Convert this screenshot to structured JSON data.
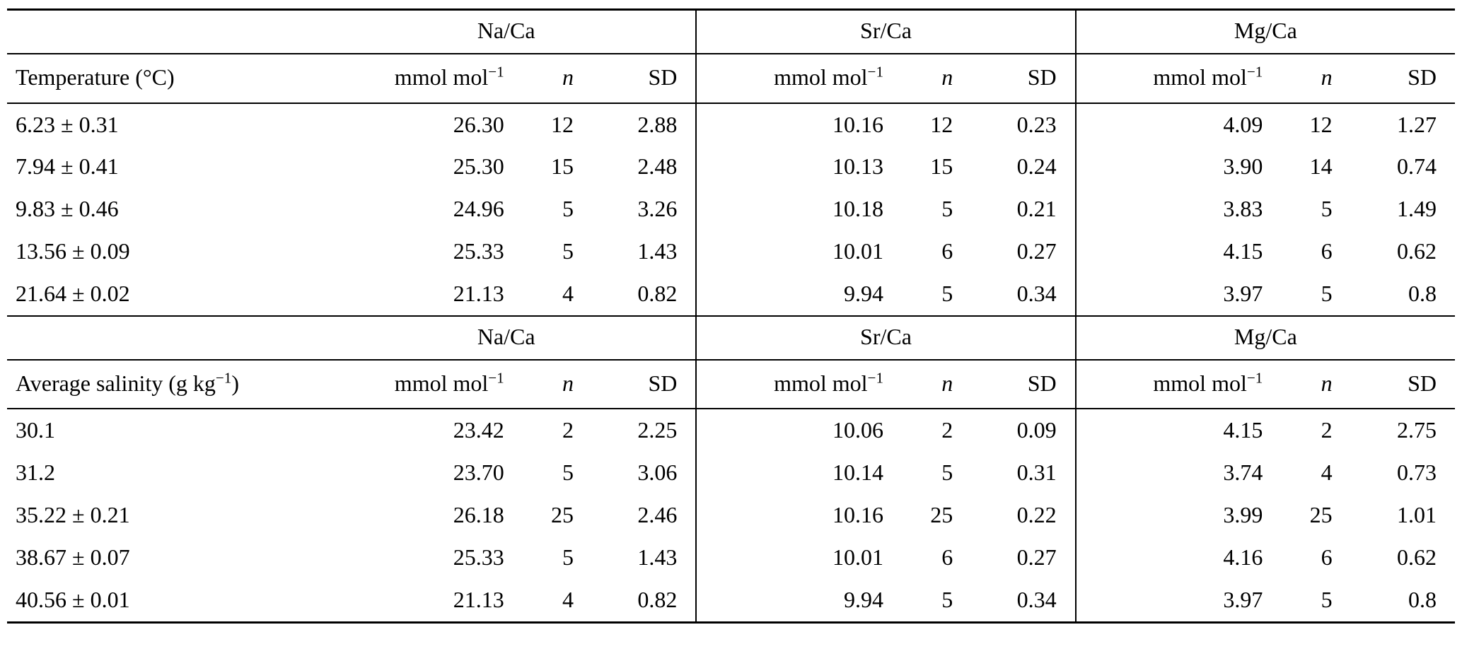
{
  "page": {
    "background": "#ffffff",
    "text_color": "#000000",
    "rule_color": "#000000"
  },
  "group_headers": [
    "Na/Ca",
    "Sr/Ca",
    "Mg/Ca"
  ],
  "column_headers": {
    "unit_base": "mmol mol",
    "unit_sup": "−1",
    "n_label": "n",
    "sd_label": "SD"
  },
  "tables": [
    {
      "id": "temperature",
      "row_header": {
        "pre": "Temperature (°C)",
        "sup": "",
        "post": ""
      },
      "rows": [
        {
          "label": "6.23 ± 0.31",
          "values": [
            [
              "26.30",
              "12",
              "2.88"
            ],
            [
              "10.16",
              "12",
              "0.23"
            ],
            [
              "4.09",
              "12",
              "1.27"
            ]
          ]
        },
        {
          "label": "7.94 ± 0.41",
          "values": [
            [
              "25.30",
              "15",
              "2.48"
            ],
            [
              "10.13",
              "15",
              "0.24"
            ],
            [
              "3.90",
              "14",
              "0.74"
            ]
          ]
        },
        {
          "label": "9.83 ± 0.46",
          "values": [
            [
              "24.96",
              "5",
              "3.26"
            ],
            [
              "10.18",
              "5",
              "0.21"
            ],
            [
              "3.83",
              "5",
              "1.49"
            ]
          ]
        },
        {
          "label": "13.56 ± 0.09",
          "values": [
            [
              "25.33",
              "5",
              "1.43"
            ],
            [
              "10.01",
              "6",
              "0.27"
            ],
            [
              "4.15",
              "6",
              "0.62"
            ]
          ]
        },
        {
          "label": "21.64 ± 0.02",
          "values": [
            [
              "21.13",
              "4",
              "0.82"
            ],
            [
              "9.94",
              "5",
              "0.34"
            ],
            [
              "3.97",
              "5",
              "0.8"
            ]
          ]
        }
      ]
    },
    {
      "id": "salinity",
      "row_header": {
        "pre": "Average salinity (g kg",
        "sup": "−1",
        "post": ")"
      },
      "rows": [
        {
          "label": "30.1",
          "values": [
            [
              "23.42",
              "2",
              "2.25"
            ],
            [
              "10.06",
              "2",
              "0.09"
            ],
            [
              "4.15",
              "2",
              "2.75"
            ]
          ]
        },
        {
          "label": "31.2",
          "values": [
            [
              "23.70",
              "5",
              "3.06"
            ],
            [
              "10.14",
              "5",
              "0.31"
            ],
            [
              "3.74",
              "4",
              "0.73"
            ]
          ]
        },
        {
          "label": "35.22 ± 0.21",
          "values": [
            [
              "26.18",
              "25",
              "2.46"
            ],
            [
              "10.16",
              "25",
              "0.22"
            ],
            [
              "3.99",
              "25",
              "1.01"
            ]
          ]
        },
        {
          "label": "38.67 ± 0.07",
          "values": [
            [
              "25.33",
              "5",
              "1.43"
            ],
            [
              "10.01",
              "6",
              "0.27"
            ],
            [
              "4.16",
              "6",
              "0.62"
            ]
          ]
        },
        {
          "label": "40.56 ± 0.01",
          "values": [
            [
              "21.13",
              "4",
              "0.82"
            ],
            [
              "9.94",
              "5",
              "0.34"
            ],
            [
              "3.97",
              "5",
              "0.8"
            ]
          ]
        }
      ]
    }
  ]
}
